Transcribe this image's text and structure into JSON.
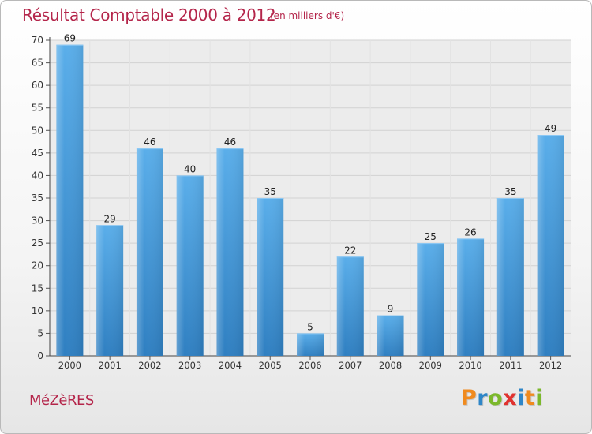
{
  "chart_data": {
    "type": "bar",
    "title": "Résultat Comptable 2000 à 2012",
    "subtitle": "(en milliers d'€)",
    "categories": [
      "2000",
      "2001",
      "2002",
      "2003",
      "2004",
      "2005",
      "2006",
      "2007",
      "2008",
      "2009",
      "2010",
      "2011",
      "2012"
    ],
    "values": [
      69,
      29,
      46,
      40,
      46,
      35,
      5,
      22,
      9,
      25,
      26,
      35,
      49
    ],
    "ylim": [
      0,
      70
    ],
    "yticks": [
      0,
      5,
      10,
      15,
      20,
      25,
      30,
      35,
      40,
      45,
      50,
      55,
      60,
      65,
      70
    ],
    "xlabel": "",
    "ylabel": "",
    "grid": true,
    "legend": "none"
  },
  "footer": {
    "place": "MéZèRES",
    "logo_letters": [
      "P",
      "r",
      "o",
      "x",
      "i",
      "t",
      "i"
    ],
    "logo_colors": [
      "#f08a1e",
      "#2e86c8",
      "#7bb82b",
      "#e0322f",
      "#2e86c8",
      "#f08a1e",
      "#7bb82b"
    ]
  },
  "colors": {
    "bar": "#4a9ee0",
    "title": "#b4254a"
  }
}
